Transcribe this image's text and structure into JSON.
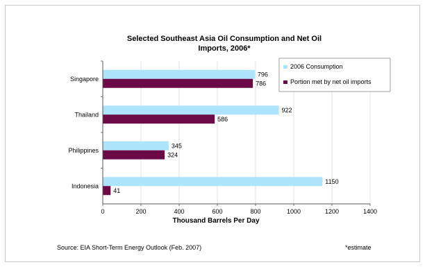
{
  "chart_data": {
    "type": "bar",
    "orientation": "horizontal",
    "title_line1": "Selected Southeast Asia Oil Consumption and Net Oil",
    "title_line2": "Imports, 2006*",
    "categories": [
      "Singapore",
      "Thailand",
      "Philippines",
      "Indonesia"
    ],
    "series": [
      {
        "name": "2006 Consumption",
        "color": "#aee4fb",
        "values": [
          796,
          922,
          345,
          1150
        ]
      },
      {
        "name": "Portion met by net oil imports",
        "color": "#6b0a47",
        "values": [
          786,
          586,
          324,
          41
        ]
      }
    ],
    "value_labels": [
      [
        "796",
        "922",
        "345",
        "1150"
      ],
      [
        "786",
        "586",
        "324",
        "41"
      ]
    ],
    "xlim": [
      0,
      1400
    ],
    "x_ticks": [
      "0",
      "200",
      "400",
      "600",
      "800",
      "1000",
      "1200",
      "1400"
    ],
    "xlabel": "Thousand Barrels Per Day",
    "ylabel": "",
    "grid": true,
    "legend_position": "top-right",
    "source": "Source: EIA Short-Term Energy Outlook (Feb. 2007)",
    "footnote": "*estimate"
  }
}
